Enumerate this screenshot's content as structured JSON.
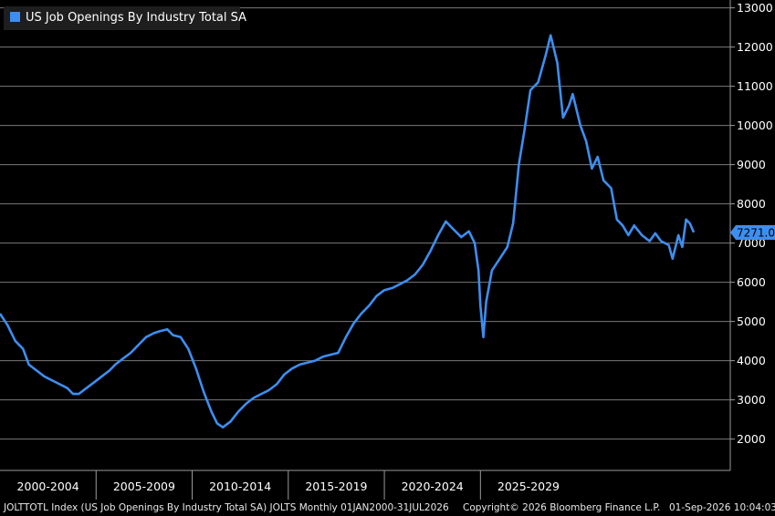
{
  "chart_data": {
    "type": "line",
    "title": "US Job Openings By Industry Total SA",
    "series": [
      {
        "name": "US Job Openings By Industry Total SA",
        "color": "#3d8ef0",
        "points": [
          [
            2000.0,
            5200
          ],
          [
            2000.4,
            4900
          ],
          [
            2000.8,
            4500
          ],
          [
            2001.2,
            4300
          ],
          [
            2001.5,
            3900
          ],
          [
            2001.9,
            3750
          ],
          [
            2002.3,
            3600
          ],
          [
            2002.7,
            3500
          ],
          [
            2003.1,
            3400
          ],
          [
            2003.5,
            3300
          ],
          [
            2003.8,
            3150
          ],
          [
            2004.1,
            3150
          ],
          [
            2004.5,
            3300
          ],
          [
            2004.9,
            3450
          ],
          [
            2005.3,
            3600
          ],
          [
            2005.7,
            3750
          ],
          [
            2006.0,
            3900
          ],
          [
            2006.4,
            4050
          ],
          [
            2006.8,
            4200
          ],
          [
            2007.2,
            4400
          ],
          [
            2007.6,
            4600
          ],
          [
            2008.0,
            4700
          ],
          [
            2008.3,
            4750
          ],
          [
            2008.7,
            4800
          ],
          [
            2009.0,
            4650
          ],
          [
            2009.4,
            4600
          ],
          [
            2009.8,
            4300
          ],
          [
            2010.2,
            3800
          ],
          [
            2010.6,
            3200
          ],
          [
            2011.0,
            2700
          ],
          [
            2011.3,
            2400
          ],
          [
            2011.6,
            2300
          ],
          [
            2012.0,
            2450
          ],
          [
            2012.4,
            2700
          ],
          [
            2012.8,
            2900
          ],
          [
            2013.2,
            3050
          ],
          [
            2013.6,
            3150
          ],
          [
            2014.0,
            3250
          ],
          [
            2014.4,
            3400
          ],
          [
            2014.8,
            3650
          ],
          [
            2015.2,
            3800
          ],
          [
            2015.6,
            3900
          ],
          [
            2016.0,
            3950
          ],
          [
            2016.4,
            4000
          ],
          [
            2016.8,
            4100
          ],
          [
            2017.2,
            4150
          ],
          [
            2017.6,
            4200
          ],
          [
            2018.0,
            4600
          ],
          [
            2018.4,
            4950
          ],
          [
            2018.8,
            5200
          ],
          [
            2019.2,
            5400
          ],
          [
            2019.6,
            5650
          ],
          [
            2020.0,
            5800
          ],
          [
            2020.4,
            5850
          ],
          [
            2020.8,
            5950
          ],
          [
            2021.2,
            6050
          ],
          [
            2021.6,
            6200
          ],
          [
            2022.0,
            6450
          ],
          [
            2022.4,
            6800
          ],
          [
            2022.8,
            7200
          ],
          [
            2023.2,
            7550
          ],
          [
            2023.6,
            7350
          ],
          [
            2024.0,
            7150
          ],
          [
            2024.4,
            7300
          ],
          [
            2024.7,
            7000
          ],
          [
            2024.9,
            6300
          ],
          [
            2025.0,
            5400
          ],
          [
            2025.15,
            4600
          ],
          [
            2025.3,
            5500
          ],
          [
            2025.6,
            6300
          ],
          [
            2026.0,
            6600
          ],
          [
            2026.4,
            6900
          ],
          [
            2026.7,
            7500
          ],
          [
            2027.0,
            9000
          ],
          [
            2027.3,
            9900
          ],
          [
            2027.6,
            10900
          ],
          [
            2028.0,
            11100
          ],
          [
            2028.4,
            11800
          ],
          [
            2028.65,
            12300
          ],
          [
            2029.0,
            11600
          ],
          [
            2029.3,
            10200
          ],
          [
            2029.6,
            10500
          ],
          [
            2029.8,
            10800
          ],
          [
            2030.2,
            10000
          ],
          [
            2030.5,
            9600
          ],
          [
            2030.8,
            8900
          ],
          [
            2031.1,
            9200
          ],
          [
            2031.4,
            8600
          ],
          [
            2031.8,
            8400
          ],
          [
            2032.1,
            7600
          ],
          [
            2032.4,
            7450
          ],
          [
            2032.7,
            7200
          ],
          [
            2033.0,
            7450
          ],
          [
            2033.4,
            7200
          ],
          [
            2033.8,
            7050
          ],
          [
            2034.1,
            7250
          ],
          [
            2034.4,
            7050
          ],
          [
            2034.8,
            6950
          ],
          [
            2035.0,
            6600
          ],
          [
            2035.3,
            7200
          ],
          [
            2035.5,
            6900
          ],
          [
            2035.7,
            7600
          ],
          [
            2035.9,
            7500
          ],
          [
            2036.1,
            7271
          ]
        ],
        "last_value": "7271.0"
      }
    ],
    "x_axis": {
      "range": [
        2000,
        2038
      ],
      "category_labels": [
        "2000-2004",
        "2005-2009",
        "2010-2014",
        "2015-2019",
        "2020-2024",
        "2025-2029"
      ]
    },
    "y_axis": {
      "side": "right",
      "ylim": [
        1200,
        13200
      ],
      "ticks": [
        2000,
        3000,
        4000,
        5000,
        6000,
        7000,
        8000,
        9000,
        10000,
        11000,
        12000,
        13000
      ]
    },
    "grid": true,
    "legend_position": "top-left"
  },
  "footer": {
    "left": "JOLTTOTL Index (US Job Openings By Industry Total SA) JOLTS Monthly 01JAN2000-31JUL2026",
    "center": "Copyright© 2026 Bloomberg Finance L.P.",
    "right": "01-Sep-2026 10:04:03"
  }
}
